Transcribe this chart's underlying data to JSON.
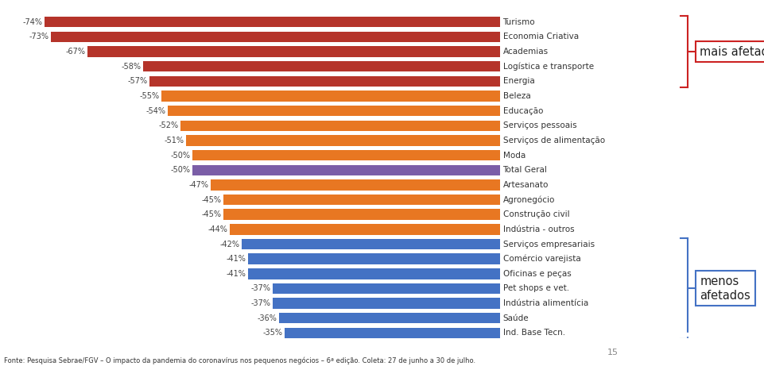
{
  "categories": [
    "Turismo",
    "Economia Criativa",
    "Academias",
    "Logística e transporte",
    "Energia",
    "Beleza",
    "Educação",
    "Serviços pessoais",
    "Serviços de alimentação",
    "Moda",
    "Total Geral",
    "Artesanato",
    "Agronegócio",
    "Construção civil",
    "Indústria - outros",
    "Serviços empresariais",
    "Comércio varejista",
    "Oficinas e peças",
    "Pet shops e vet.",
    "Indústria alimentícia",
    "Saúde",
    "Ind. Base Tecn."
  ],
  "values": [
    -74,
    -73,
    -67,
    -58,
    -57,
    -55,
    -54,
    -52,
    -51,
    -50,
    -50,
    -47,
    -45,
    -45,
    -44,
    -42,
    -41,
    -41,
    -37,
    -37,
    -36,
    -35
  ],
  "colors": [
    "#b5342a",
    "#b5342a",
    "#b5342a",
    "#b5342a",
    "#b5342a",
    "#e87722",
    "#e87722",
    "#e87722",
    "#e87722",
    "#e87722",
    "#7b5ea7",
    "#e87722",
    "#e87722",
    "#e87722",
    "#e87722",
    "#4472c4",
    "#4472c4",
    "#4472c4",
    "#4472c4",
    "#4472c4",
    "#4472c4",
    "#4472c4"
  ],
  "xlim": [
    -80,
    0
  ],
  "background_color": "#ffffff",
  "footer_text": "Fonte: Pesquisa Sebrae/FGV – O impacto da pandemia do coronavírus nos pequenos negócios – 6ª edição. Coleta: 27 de junho a 30 de julho.",
  "mais_afetados_text": "mais afetados",
  "menos_afetados_text": "menos\nafetados",
  "page_number": "15",
  "mais_bracket_rows": [
    0,
    4
  ],
  "menos_bracket_rows": [
    15,
    21
  ],
  "bar_label_fontsize": 7,
  "cat_label_fontsize": 7.5
}
